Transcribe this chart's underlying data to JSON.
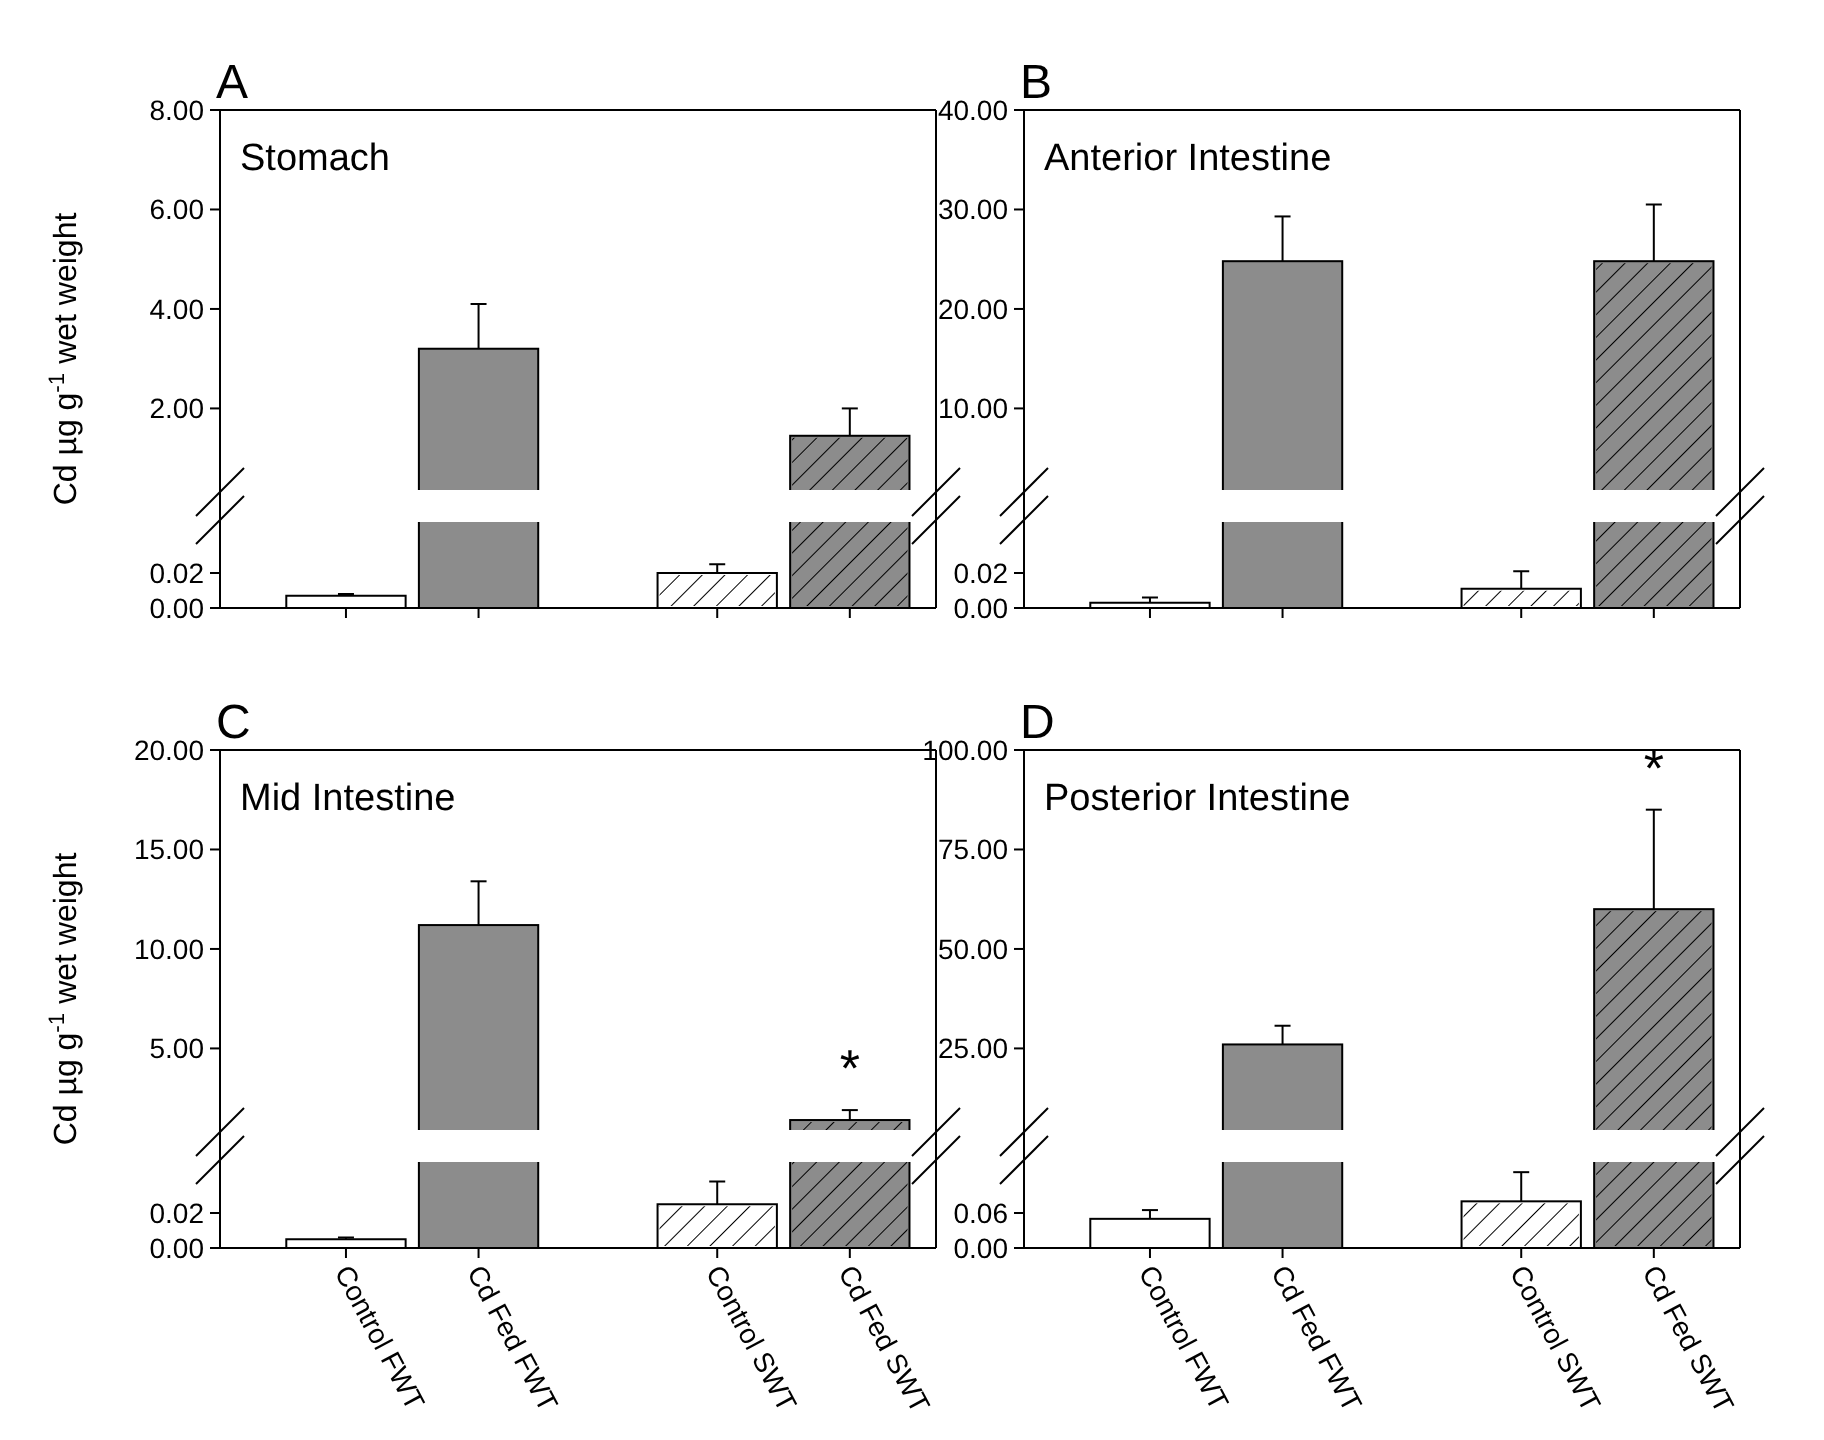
{
  "chart_data": [
    {
      "type": "bar",
      "title": "A",
      "subtitle": "Stomach",
      "ylabel": "Cd µg g$^{-1}$ wet weight",
      "categories": [
        null,
        null,
        null,
        null
      ],
      "values": [
        null,
        3.2,
        null,
        1.45
      ],
      "errors": [
        null,
        [
          3.2,
          4.1
        ],
        null,
        [
          1.45,
          2
        ]
      ],
      "colors": [
        "#ffffff",
        "#8c8c8c",
        "#ffffff",
        "#8c8c8c"
      ],
      "ylim": [
        0.4,
        8
      ],
      "yticks": [
        {
          "value": 2,
          "label": "2.00"
        },
        {
          "value": 4,
          "label": "4.00"
        },
        {
          "value": 6,
          "label": "6.00"
        },
        {
          "value": 8,
          "label": "8.00"
        }
      ],
      "tick_labels": "y"
    },
    {
      "type": "bar",
      "categories": [
        null,
        null,
        null,
        null
      ],
      "values": [
        0.007,
        null,
        0.02,
        null
      ],
      "errors": [
        [
          0.007,
          0.008
        ],
        null,
        [
          0.02,
          0.025
        ],
        null
      ],
      "colors": [
        "#ffffff",
        "#8c8c8c",
        "#ffffff",
        "#8c8c8c"
      ],
      "ylim": [
        0,
        0.048
      ],
      "yticks": [
        {
          "value": 0,
          "label": "0.00"
        },
        {
          "value": 0.02,
          "label": "0.02"
        }
      ],
      "tick_labels": "y"
    },
    {
      "type": "bar",
      "title": "B",
      "subtitle": "Anterior Intestine",
      "categories": [
        null,
        null,
        null,
        null
      ],
      "values": [
        null,
        24.8,
        null,
        24.8
      ],
      "errors": [
        null,
        [
          24.8,
          29.3
        ],
        null,
        [
          24.8,
          30.5
        ]
      ],
      "colors": [
        "#ffffff",
        "#8c8c8c",
        "#ffffff",
        "#8c8c8c"
      ],
      "ylim": [
        2,
        40
      ],
      "yticks": [
        {
          "value": 10,
          "label": "10.00"
        },
        {
          "value": 20,
          "label": "20.00"
        },
        {
          "value": 30,
          "label": "30.00"
        },
        {
          "value": 40,
          "label": "40.00"
        }
      ],
      "tick_labels": "y"
    },
    {
      "type": "bar",
      "categories": [
        null,
        null,
        null,
        null
      ],
      "values": [
        0.003,
        null,
        0.011,
        null
      ],
      "errors": [
        [
          0.003,
          0.006
        ],
        null,
        [
          0.011,
          0.021
        ],
        null
      ],
      "colors": [
        "#ffffff",
        "#8c8c8c",
        "#ffffff",
        "#8c8c8c"
      ],
      "ylim": [
        0,
        0.048
      ],
      "yticks": [
        {
          "value": 0,
          "label": "0.00"
        },
        {
          "value": 0.02,
          "label": "0.02"
        }
      ],
      "tick_labels": "y"
    },
    {
      "type": "bar",
      "title": "C",
      "subtitle": "Mid Intestine",
      "ylabel": "Cd µg g$^{-1}$ wet weight",
      "categories": [
        null,
        null,
        null,
        null
      ],
      "values": [
        null,
        11.2,
        null,
        1.4
      ],
      "errors": [
        null,
        [
          11.2,
          13.4
        ],
        null,
        [
          1.4,
          1.9
        ]
      ],
      "colors": [
        "#ffffff",
        "#8c8c8c",
        "#ffffff",
        "#8c8c8c"
      ],
      "ylim": [
        1,
        20
      ],
      "yticks": [
        {
          "value": 5,
          "label": "5.00"
        },
        {
          "value": 10,
          "label": "10.00"
        },
        {
          "value": 15,
          "label": "15.00"
        },
        {
          "value": 20,
          "label": "20.00"
        }
      ],
      "tick_labels": "y",
      "annotations": [
        "*"
      ]
    },
    {
      "type": "bar",
      "categories": [
        "Control FWT",
        "Cd Fed FWT",
        "Control SWT",
        "Cd Fed SWT"
      ],
      "values": [
        0.005,
        null,
        0.025,
        null
      ],
      "errors": [
        [
          0.005,
          0.006
        ],
        null,
        [
          0.025,
          0.038
        ],
        null
      ],
      "colors": [
        "#ffffff",
        "#8c8c8c",
        "#ffffff",
        "#8c8c8c"
      ],
      "ylim": [
        0,
        0.048
      ],
      "yticks": [
        {
          "value": 0,
          "label": "0.00"
        },
        {
          "value": 0.02,
          "label": "0.02"
        }
      ]
    },
    {
      "type": "bar",
      "title": "D",
      "subtitle": "Posterior Intestine",
      "categories": [
        null,
        null,
        null,
        null
      ],
      "values": [
        null,
        26,
        null,
        60
      ],
      "errors": [
        null,
        [
          26,
          30.7
        ],
        null,
        [
          60,
          85
        ]
      ],
      "colors": [
        "#ffffff",
        "#8c8c8c",
        "#ffffff",
        "#8c8c8c"
      ],
      "ylim": [
        5,
        100
      ],
      "yticks": [
        {
          "value": 25,
          "label": "25.00"
        },
        {
          "value": 50,
          "label": "50.00"
        },
        {
          "value": 75,
          "label": "75.00"
        },
        {
          "value": 100,
          "label": "100.00"
        }
      ],
      "tick_labels": "y",
      "annotations": [
        "*"
      ]
    },
    {
      "type": "bar",
      "categories": [
        "Control FWT",
        "Cd Fed FWT",
        "Control SWT",
        "Cd Fed SWT"
      ],
      "values": [
        0.05,
        null,
        0.08,
        null
      ],
      "errors": [
        [
          0.05,
          0.065
        ],
        null,
        [
          0.08,
          0.13
        ],
        null
      ],
      "colors": [
        "#ffffff",
        "#8c8c8c",
        "#ffffff",
        "#8c8c8c"
      ],
      "ylim": [
        0,
        0.144
      ],
      "yticks": [
        {
          "value": 0,
          "label": "0.00"
        },
        {
          "value": 0.06,
          "label": "0.06"
        }
      ]
    }
  ]
}
